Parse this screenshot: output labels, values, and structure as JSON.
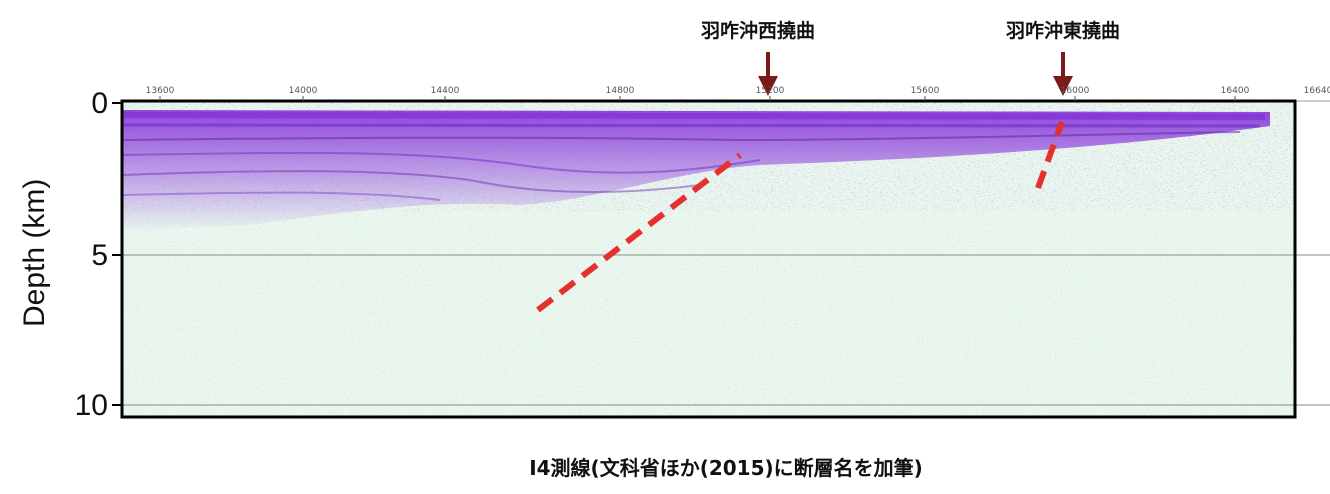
{
  "figure": {
    "caption": "I4測線(文科省ほか(2015)に断層名を加筆)",
    "axis": {
      "ylabel": "Depth (km)",
      "depth_ticks": [
        "0",
        "5",
        "10"
      ],
      "distance_ticks": [
        "13600",
        "14000",
        "14400",
        "14800",
        "15200",
        "15600",
        "16000",
        "16400",
        "16640"
      ]
    },
    "faults": [
      {
        "label": "羽咋沖西撓曲"
      },
      {
        "label": "羽咋沖東撓曲"
      }
    ],
    "colors": {
      "fault_line": "#e53030",
      "arrow": "#7a1b1b",
      "reflector": "#7b2bd1",
      "background_noise": "#bfe6c8",
      "frame": "#000000"
    }
  }
}
